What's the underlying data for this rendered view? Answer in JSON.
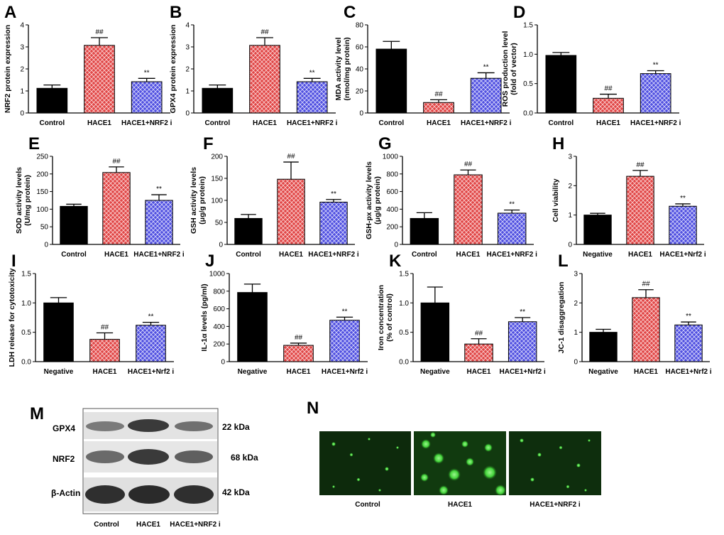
{
  "colors": {
    "bar_black": "#000000",
    "hace1_red": "#e04545",
    "nrf2i_blue": "#4f4fe0",
    "fluor_green": "#3fd43a",
    "blot_bg": "#e6e6e6"
  },
  "chart_data": [
    {
      "panel": "A",
      "type": "bar",
      "categories": [
        "Control",
        "HACE1",
        "HACE1+NRF2 i"
      ],
      "values": [
        1.12,
        3.07,
        1.42
      ],
      "errors": [
        0.15,
        0.35,
        0.15
      ],
      "marks": [
        "",
        "##",
        "**"
      ],
      "ylabel": "NRF2 protein expression",
      "ylim": [
        0,
        4
      ],
      "yticks": [
        0,
        1,
        2,
        3,
        4
      ]
    },
    {
      "panel": "B",
      "type": "bar",
      "categories": [
        "Control",
        "HACE1",
        "HACE1+NRF2 i"
      ],
      "values": [
        1.12,
        3.07,
        1.42
      ],
      "errors": [
        0.15,
        0.35,
        0.15
      ],
      "marks": [
        "",
        "##",
        "**"
      ],
      "ylabel": "GPX4 protein expression",
      "ylim": [
        0,
        4
      ],
      "yticks": [
        0,
        1,
        2,
        3,
        4
      ]
    },
    {
      "panel": "C",
      "type": "bar",
      "categories": [
        "Control",
        "HACE1",
        "HACE1+NRF2 i"
      ],
      "values": [
        58,
        9.5,
        31.5
      ],
      "errors": [
        7,
        2.5,
        5
      ],
      "marks": [
        "",
        "##",
        "**"
      ],
      "ylabel": "MDA activity level\n(nmol/mg protein)",
      "ylim": [
        0,
        80
      ],
      "yticks": [
        0,
        20,
        40,
        60,
        80
      ]
    },
    {
      "panel": "D",
      "type": "bar",
      "categories": [
        "Control",
        "HACE1",
        "HACE1+NRF2 i"
      ],
      "values": [
        0.98,
        0.25,
        0.67
      ],
      "errors": [
        0.05,
        0.07,
        0.05
      ],
      "marks": [
        "",
        "##",
        "**"
      ],
      "ylabel": "ROS production level\n(fold of vector)",
      "ylim": [
        0,
        1.5
      ],
      "yticks": [
        0.0,
        0.5,
        1.0,
        1.5
      ]
    },
    {
      "panel": "E",
      "type": "bar",
      "categories": [
        "Control",
        "HACE1",
        "HACE1+NRF2 i"
      ],
      "values": [
        108,
        204,
        125
      ],
      "errors": [
        6,
        16,
        16
      ],
      "marks": [
        "",
        "##",
        "**"
      ],
      "ylabel": "SOD activity levels\n(U/mg protein)",
      "ylim": [
        0,
        250
      ],
      "yticks": [
        0,
        50,
        100,
        150,
        200,
        250
      ]
    },
    {
      "panel": "F",
      "type": "bar",
      "categories": [
        "Control",
        "HACE1",
        "HACE1+NRF2 i"
      ],
      "values": [
        59,
        148,
        96
      ],
      "errors": [
        9,
        39,
        6
      ],
      "marks": [
        "",
        "##",
        "**"
      ],
      "ylabel": "GSH activity levels\n(μg/g protein)",
      "ylim": [
        0,
        200
      ],
      "yticks": [
        0,
        50,
        100,
        150,
        200
      ]
    },
    {
      "panel": "G",
      "type": "bar",
      "categories": [
        "Control",
        "HACE1",
        "HACE1+NRF2 i"
      ],
      "values": [
        295,
        790,
        355
      ],
      "errors": [
        65,
        55,
        35
      ],
      "marks": [
        "",
        "##",
        "**"
      ],
      "ylabel": "GSH-px activity levels\n(μg/g protein)",
      "ylim": [
        0,
        1000
      ],
      "yticks": [
        0,
        200,
        400,
        600,
        800,
        1000
      ]
    },
    {
      "panel": "H",
      "type": "bar",
      "categories": [
        "Negative",
        "HACE1",
        "HACE1+Nrf2 i"
      ],
      "values": [
        1.0,
        2.32,
        1.3
      ],
      "errors": [
        0.06,
        0.2,
        0.08
      ],
      "marks": [
        "",
        "##",
        "**"
      ],
      "ylabel": "Cell viability",
      "ylim": [
        0,
        3
      ],
      "yticks": [
        0,
        1,
        2,
        3
      ]
    },
    {
      "panel": "I",
      "type": "bar",
      "categories": [
        "Negative",
        "HACE1",
        "HACE1+Nrf2 i"
      ],
      "values": [
        1.0,
        0.38,
        0.62
      ],
      "errors": [
        0.09,
        0.11,
        0.05
      ],
      "marks": [
        "",
        "##",
        "**"
      ],
      "ylabel": "LDH release for cytotoxicity",
      "ylim": [
        0,
        1.5
      ],
      "yticks": [
        0.0,
        0.5,
        1.0,
        1.5
      ]
    },
    {
      "panel": "J",
      "type": "bar",
      "categories": [
        "Negative",
        "HACE1",
        "HACE1+Nrf2 i"
      ],
      "values": [
        785,
        185,
        470
      ],
      "errors": [
        95,
        25,
        35
      ],
      "marks": [
        "",
        "##",
        "**"
      ],
      "ylabel": "IL-1α levels (pg/ml)",
      "ylim": [
        0,
        1000
      ],
      "yticks": [
        0,
        200,
        400,
        600,
        800,
        1000
      ]
    },
    {
      "panel": "K",
      "type": "bar",
      "categories": [
        "Negative",
        "HACE1",
        "HACE1+Nrf2 i"
      ],
      "values": [
        1.0,
        0.3,
        0.68
      ],
      "errors": [
        0.27,
        0.09,
        0.07
      ],
      "marks": [
        "",
        "##",
        "**"
      ],
      "ylabel": "Iron concentration\n(% of control)",
      "ylim": [
        0,
        1.5
      ],
      "yticks": [
        0.0,
        0.5,
        1.0,
        1.5
      ]
    },
    {
      "panel": "L",
      "type": "bar",
      "categories": [
        "Negative",
        "HACE1",
        "HACE1+Nrf2 i"
      ],
      "values": [
        1.0,
        2.18,
        1.25
      ],
      "errors": [
        0.1,
        0.27,
        0.1
      ],
      "marks": [
        "",
        "##",
        "**"
      ],
      "ylabel": "JC-1 disaggregation",
      "ylim": [
        0,
        3
      ],
      "yticks": [
        0,
        1,
        2,
        3
      ]
    }
  ],
  "blot": {
    "panel": "M",
    "rows": [
      {
        "name": "GPX4",
        "kda": "22 kDa"
      },
      {
        "name": "NRF2",
        "kda": "68 kDa"
      },
      {
        "name": "β-Actin",
        "kda": "42 kDa"
      }
    ],
    "lanes": [
      "Control",
      "HACE1",
      "HACE1+NRF2 i"
    ]
  },
  "micrographs": {
    "panel": "N",
    "labels": [
      "Control",
      "HACE1",
      "HACE1+NRF2 i"
    ]
  }
}
